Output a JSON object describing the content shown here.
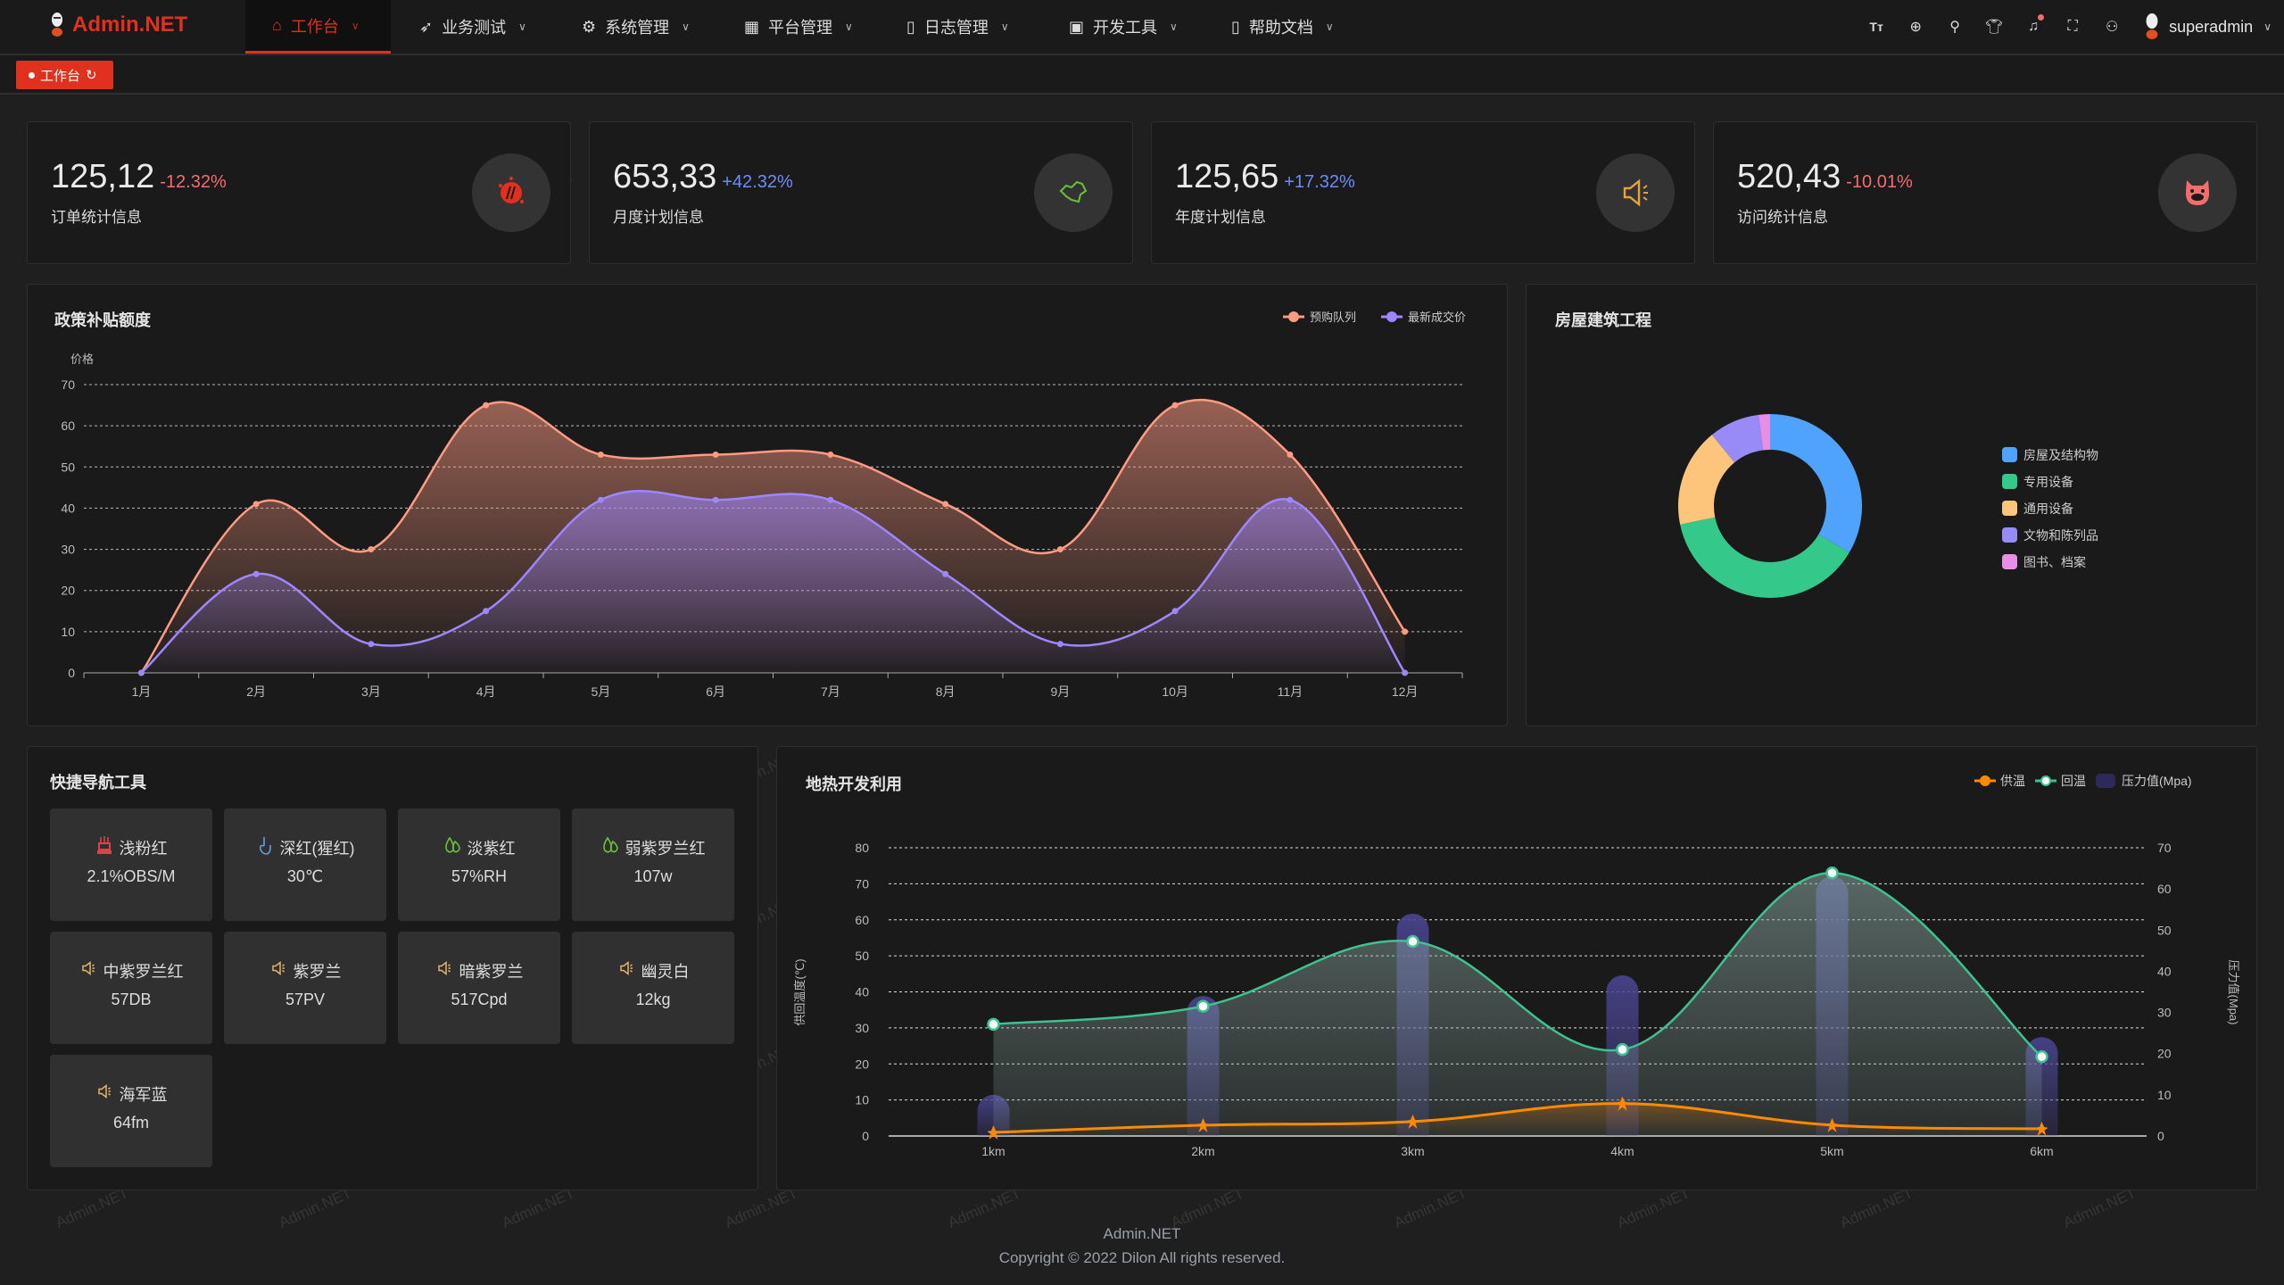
{
  "header": {
    "logo": "Admin.NET",
    "menu": [
      {
        "label": "工作台",
        "icon": "home-icon",
        "active": true
      },
      {
        "label": "业务测试",
        "icon": "send-icon"
      },
      {
        "label": "系统管理",
        "icon": "gear-icon"
      },
      {
        "label": "平台管理",
        "icon": "grid-icon"
      },
      {
        "label": "日志管理",
        "icon": "document-icon"
      },
      {
        "label": "开发工具",
        "icon": "chip-icon"
      },
      {
        "label": "帮助文档",
        "icon": "book-icon"
      }
    ],
    "tools": [
      "font-size-icon",
      "language-icon",
      "search-icon",
      "theme-shirt-icon",
      "bell-icon",
      "fullscreen-icon",
      "user-icon"
    ],
    "user": "superadmin"
  },
  "tags": [
    {
      "label": "工作台"
    }
  ],
  "stats": [
    {
      "value": "125,12",
      "change": "-12.32%",
      "change_color": "#f56c6c",
      "label": "订单统计信息",
      "icon": "spark-stamp-icon",
      "icon_color": "#e0301e"
    },
    {
      "value": "653,33",
      "change": "+42.32%",
      "change_color": "#6c8df5",
      "label": "月度计划信息",
      "icon": "china-map-icon",
      "icon_color": "#67c23a"
    },
    {
      "value": "125,65",
      "change": "+17.32%",
      "change_color": "#6c8df5",
      "label": "年度计划信息",
      "icon": "speaker-icon",
      "icon_color": "#e6a23c"
    },
    {
      "value": "520,43",
      "change": "-10.01%",
      "change_color": "#f56c6c",
      "label": "访问统计信息",
      "icon": "pig-icon",
      "icon_color": "#f56c6c"
    }
  ],
  "chart_data": [
    {
      "type": "area",
      "title": "政策补贴额度",
      "ylabel": "价格",
      "ylim": [
        0,
        70
      ],
      "yticks": [
        0,
        10,
        20,
        30,
        40,
        50,
        60,
        70
      ],
      "grid": true,
      "legend": "top-right",
      "categories": [
        "1月",
        "2月",
        "3月",
        "4月",
        "5月",
        "6月",
        "7月",
        "8月",
        "9月",
        "10月",
        "11月",
        "12月"
      ],
      "series": [
        {
          "name": "预购队列",
          "color": "#ff9b82",
          "values": [
            0,
            41,
            30,
            65,
            53,
            53,
            53,
            41,
            30,
            65,
            53,
            10
          ]
        },
        {
          "name": "最新成交价",
          "color": "#9d86ff",
          "values": [
            0,
            24,
            7,
            15,
            42,
            42,
            42,
            24,
            7,
            15,
            42,
            0
          ]
        }
      ]
    },
    {
      "type": "pie",
      "title": "房屋建筑工程",
      "legend": "right",
      "slices": [
        {
          "name": "房屋及结构物",
          "value": 33.4,
          "color": "#4fa3fd"
        },
        {
          "name": "专用设备",
          "value": 38.3,
          "color": "#34c88b"
        },
        {
          "name": "通用设备",
          "value": 17.3,
          "color": "#fdc57b"
        },
        {
          "name": "文物和陈列品",
          "value": 8.9,
          "color": "#988bf7"
        },
        {
          "name": "图书、档案",
          "value": 2.0,
          "color": "#e78fe7"
        }
      ]
    },
    {
      "type": "bar+line",
      "title": "地热开发利用",
      "legend": "top-right",
      "ylabel_left": "供回温度(℃)",
      "ylabel_right": "压力值(Mpa)",
      "ylim_left": [
        0,
        80
      ],
      "ylim_right": [
        0,
        70
      ],
      "yticks_left": [
        0,
        10,
        20,
        30,
        40,
        50,
        60,
        70,
        80
      ],
      "yticks_right": [
        0,
        10,
        20,
        30,
        40,
        50,
        60,
        70
      ],
      "grid": true,
      "categories": [
        "1km",
        "2km",
        "3km",
        "4km",
        "5km",
        "6km"
      ],
      "series": [
        {
          "name": "供温",
          "type": "line",
          "color": "#ff8a00",
          "marker": "star",
          "values": [
            1,
            3,
            4,
            9,
            3,
            2
          ]
        },
        {
          "name": "回温",
          "type": "line",
          "color": "#3ec28f",
          "marker": "circle",
          "values": [
            31,
            36,
            54,
            24,
            73,
            22
          ]
        },
        {
          "name": "压力值(Mpa)",
          "type": "bar",
          "axis": "right",
          "color": "#2d2a5a",
          "values": [
            10,
            34,
            54,
            39,
            63,
            24
          ]
        }
      ]
    }
  ],
  "quick_nav": {
    "title": "快捷导航工具",
    "items": [
      {
        "label": "浅粉红",
        "value": "2.1%OBS/M",
        "icon": "lamp-icon",
        "icon_color": "#e0404a"
      },
      {
        "label": "深红(猩红)",
        "value": "30℃",
        "icon": "hand-pointer-icon",
        "icon_color": "#6c9bd8"
      },
      {
        "label": "淡紫红",
        "value": "57%RH",
        "icon": "droplets-icon",
        "icon_color": "#67c23a"
      },
      {
        "label": "弱紫罗兰红",
        "value": "107w",
        "icon": "droplets-icon",
        "icon_color": "#67c23a"
      },
      {
        "label": "中紫罗兰红",
        "value": "57DB",
        "icon": "speaker-icon",
        "icon_color": "#e6b36c"
      },
      {
        "label": "紫罗兰",
        "value": "57PV",
        "icon": "speaker-icon",
        "icon_color": "#e6b36c"
      },
      {
        "label": "暗紫罗兰",
        "value": "517Cpd",
        "icon": "speaker-icon",
        "icon_color": "#e6b36c"
      },
      {
        "label": "幽灵白",
        "value": "12kg",
        "icon": "speaker-icon",
        "icon_color": "#e6b36c"
      },
      {
        "label": "海军蓝",
        "value": "64fm",
        "icon": "speaker-icon",
        "icon_color": "#e6b36c"
      }
    ]
  },
  "footer": {
    "brand": "Admin.NET",
    "copyright": "Copyright © 2022 Dilon All rights reserved."
  },
  "watermark": "Admin.NET"
}
